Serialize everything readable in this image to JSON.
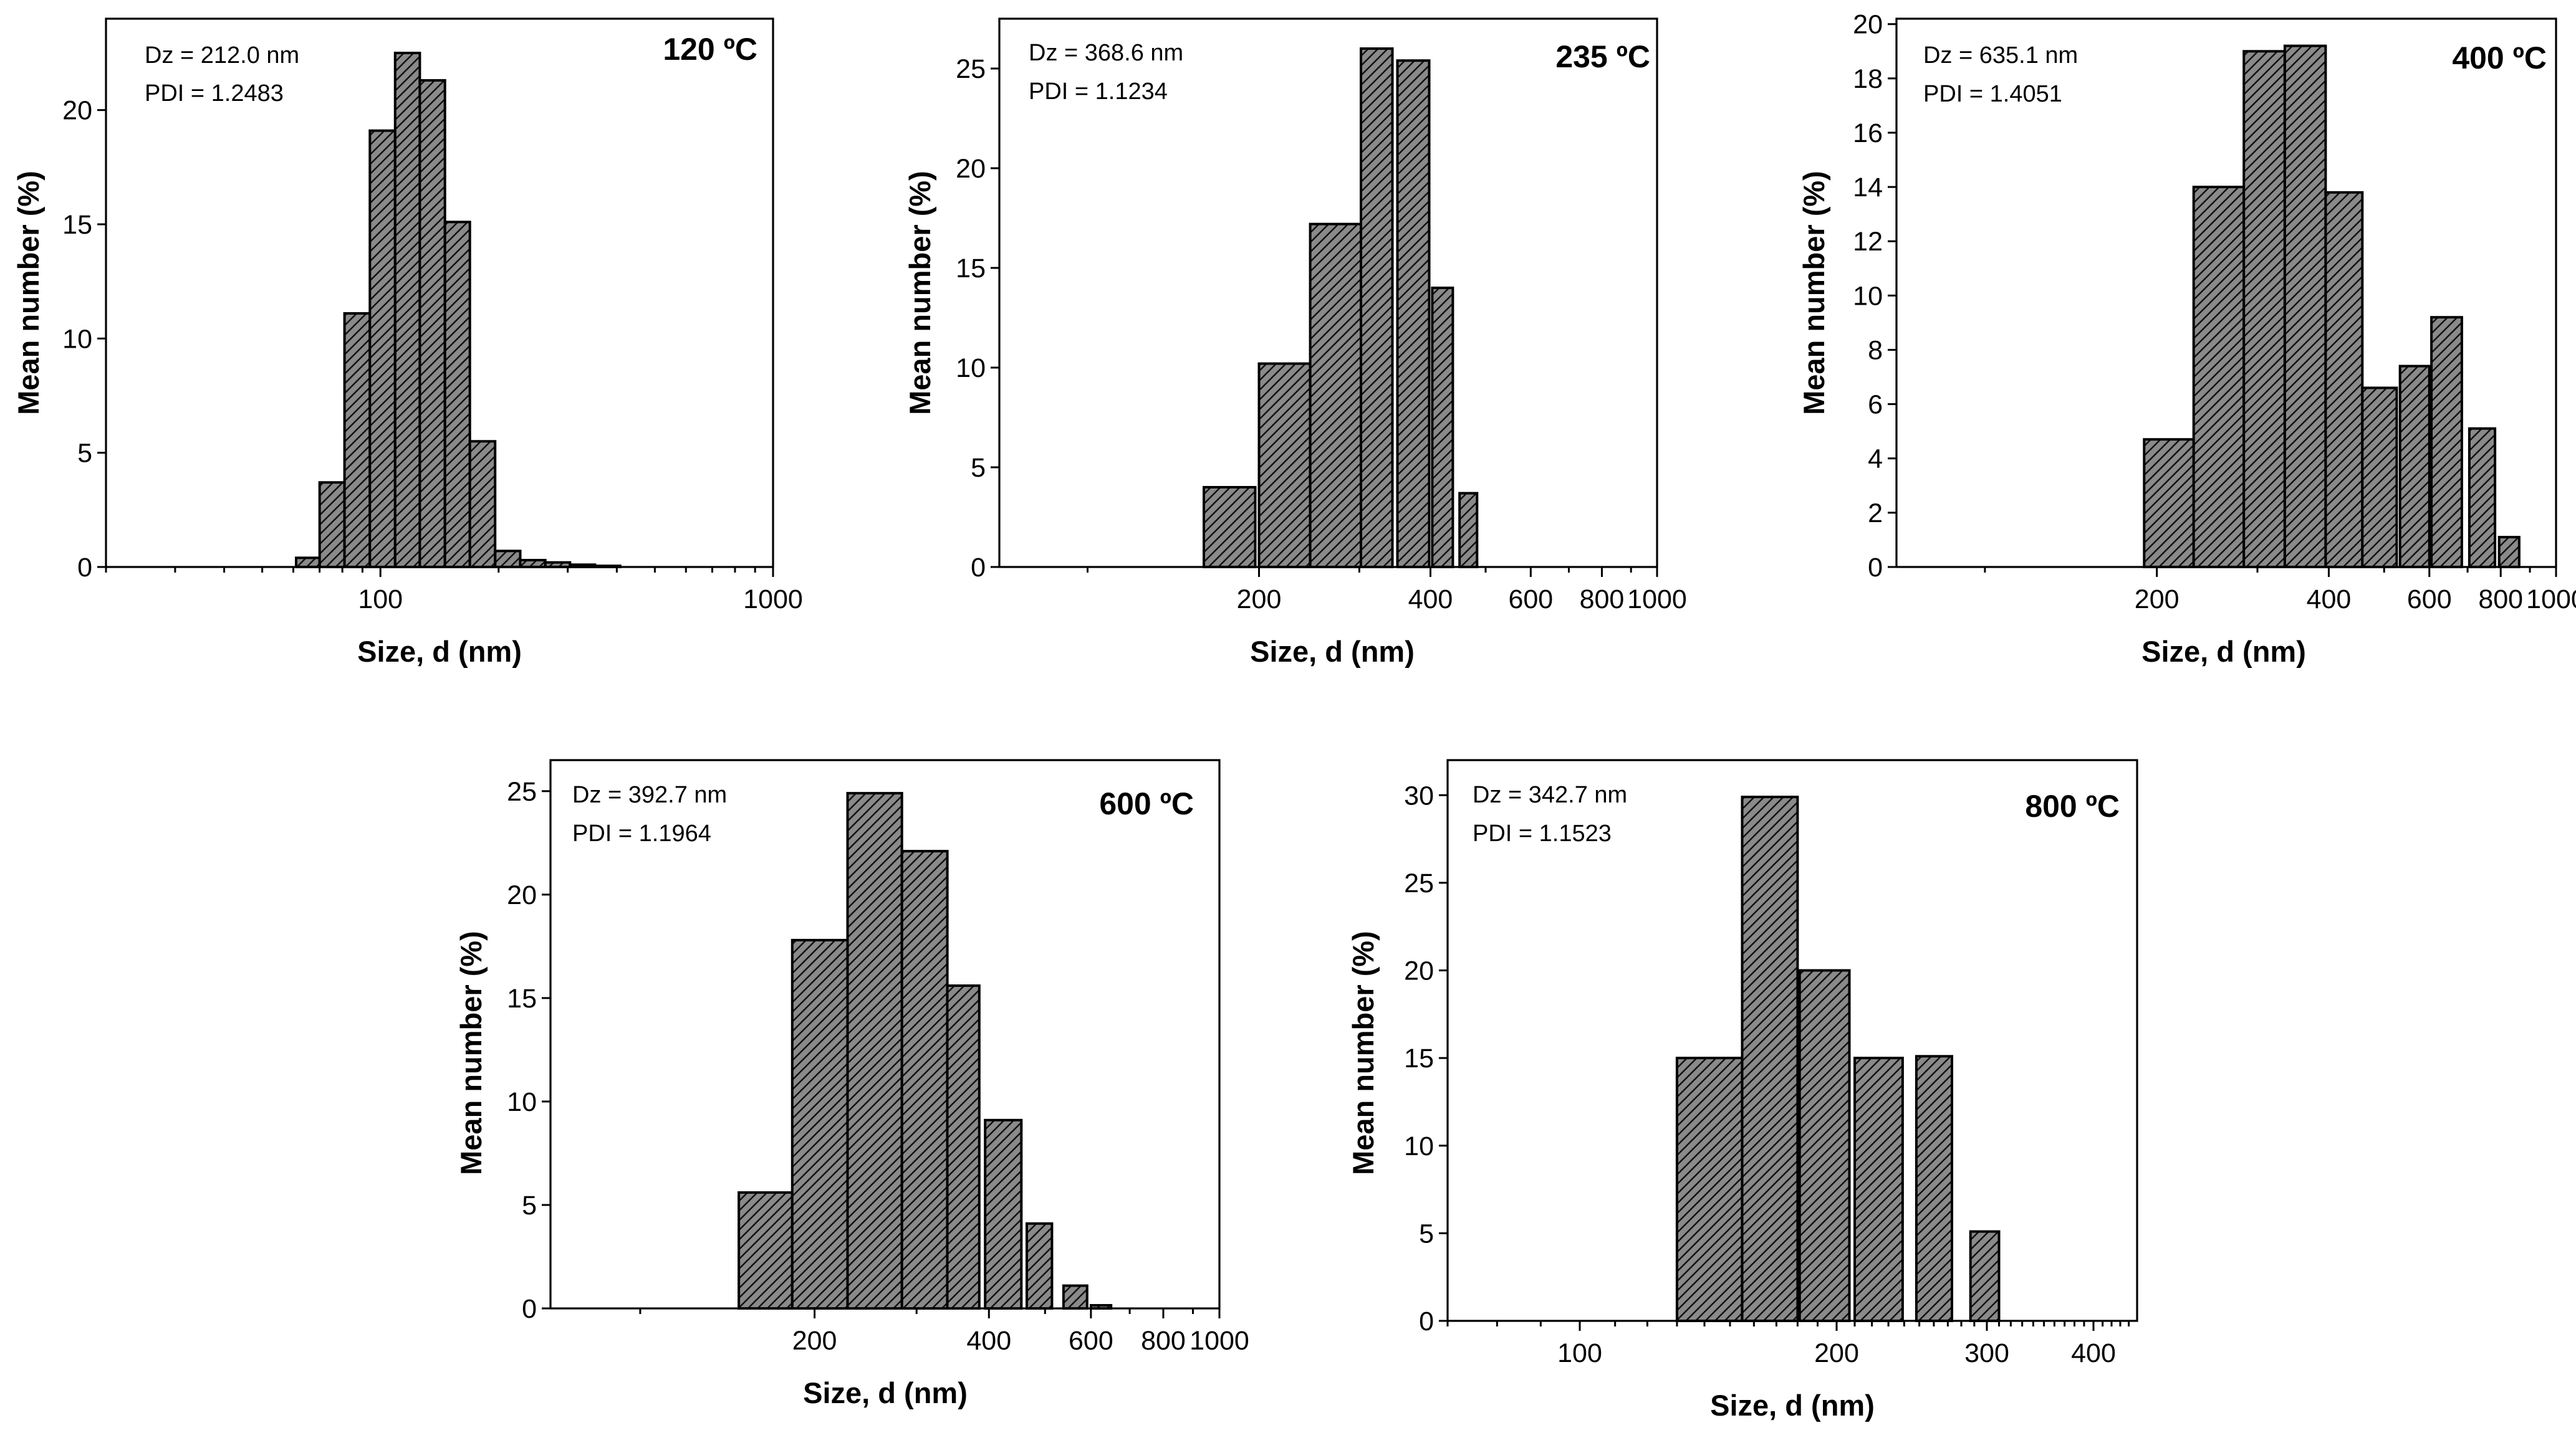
{
  "chart_data": [
    {
      "type": "bar",
      "title": "120 ºC",
      "annotation_dz": "Dz = 212.0 nm",
      "annotation_pdi": "PDI = 1.2483",
      "xlabel": "Size, d (nm)",
      "ylabel": "Mean number (%)",
      "x_scale": "log",
      "xlim": [
        20,
        1000
      ],
      "ylim": [
        0,
        24
      ],
      "x_major_ticks": [
        100,
        1000
      ],
      "x_tick_labels": [
        "100",
        "1000"
      ],
      "x_minor_ticks": [
        20,
        30,
        40,
        50,
        60,
        70,
        80,
        90,
        200,
        300,
        400,
        500,
        600,
        700,
        800,
        900
      ],
      "y_ticks": [
        0,
        5,
        10,
        15,
        20
      ],
      "y_tick_labels": [
        "0",
        "5",
        "10",
        "15",
        "20"
      ],
      "bars": [
        {
          "x0": 61,
          "x1": 70,
          "value": 0.4
        },
        {
          "x0": 70,
          "x1": 81,
          "value": 3.7
        },
        {
          "x0": 81,
          "x1": 94,
          "value": 11.1
        },
        {
          "x0": 94,
          "x1": 109,
          "value": 19.1
        },
        {
          "x0": 109,
          "x1": 126,
          "value": 22.5
        },
        {
          "x0": 126,
          "x1": 146,
          "value": 21.3
        },
        {
          "x0": 146,
          "x1": 169,
          "value": 15.1
        },
        {
          "x0": 169,
          "x1": 196,
          "value": 5.5
        },
        {
          "x0": 196,
          "x1": 227,
          "value": 0.7
        },
        {
          "x0": 227,
          "x1": 263,
          "value": 0.3
        },
        {
          "x0": 263,
          "x1": 304,
          "value": 0.2
        },
        {
          "x0": 304,
          "x1": 352,
          "value": 0.1
        },
        {
          "x0": 352,
          "x1": 408,
          "value": 0.05
        }
      ]
    },
    {
      "type": "bar",
      "title": "235 ºC",
      "annotation_dz": "Dz = 368.6 nm",
      "annotation_pdi": "PDI = 1.1234",
      "xlabel": "Size, d (nm)",
      "ylabel": "Mean number (%)",
      "x_scale": "log",
      "xlim": [
        70,
        1000
      ],
      "ylim": [
        0,
        27.5
      ],
      "x_major_ticks": [
        200,
        400,
        600,
        800,
        1000
      ],
      "x_tick_labels": [
        "200",
        "400",
        "600",
        "800",
        "1000"
      ],
      "x_minor_ticks": [
        100,
        300,
        500,
        700,
        900
      ],
      "y_ticks": [
        0,
        5,
        10,
        15,
        20,
        25
      ],
      "y_tick_labels": [
        "0",
        "5",
        "10",
        "15",
        "20",
        "25"
      ],
      "bars": [
        {
          "x0": 160,
          "x1": 197,
          "value": 4.0
        },
        {
          "x0": 200,
          "x1": 246,
          "value": 10.2
        },
        {
          "x0": 246,
          "x1": 302,
          "value": 17.2
        },
        {
          "x0": 302,
          "x1": 343,
          "value": 26.0
        },
        {
          "x0": 350,
          "x1": 398,
          "value": 25.4
        },
        {
          "x0": 403,
          "x1": 438,
          "value": 14.0
        },
        {
          "x0": 450,
          "x1": 483,
          "value": 3.7
        }
      ]
    },
    {
      "type": "bar",
      "title": "400 ºC",
      "annotation_dz": "Dz = 635.1 nm",
      "annotation_pdi": "PDI = 1.4051",
      "xlabel": "Size, d (nm)",
      "ylabel": "Mean number (%)",
      "x_scale": "log",
      "xlim": [
        70,
        1000
      ],
      "ylim": [
        0,
        20.2
      ],
      "x_major_ticks": [
        200,
        400,
        600,
        800,
        1000
      ],
      "x_tick_labels": [
        "200",
        "400",
        "600",
        "800",
        "1000"
      ],
      "x_minor_ticks": [
        100,
        300,
        500,
        700,
        900
      ],
      "y_ticks": [
        0,
        2,
        4,
        6,
        8,
        10,
        12,
        14,
        16,
        18,
        20
      ],
      "y_tick_labels": [
        "0",
        "2",
        "4",
        "6",
        "8",
        "10",
        "12",
        "14",
        "16",
        "18",
        "20"
      ],
      "bars": [
        {
          "x0": 190,
          "x1": 232,
          "value": 4.7
        },
        {
          "x0": 232,
          "x1": 284,
          "value": 14.0
        },
        {
          "x0": 284,
          "x1": 335,
          "value": 19.0
        },
        {
          "x0": 335,
          "x1": 395,
          "value": 19.2
        },
        {
          "x0": 395,
          "x1": 458,
          "value": 13.8
        },
        {
          "x0": 458,
          "x1": 526,
          "value": 6.6
        },
        {
          "x0": 533,
          "x1": 600,
          "value": 7.4
        },
        {
          "x0": 605,
          "x1": 684,
          "value": 9.2
        },
        {
          "x0": 705,
          "x1": 782,
          "value": 5.1
        },
        {
          "x0": 795,
          "x1": 862,
          "value": 1.1
        }
      ]
    },
    {
      "type": "bar",
      "title": "600 ºC",
      "annotation_dz": "Dz = 392.7 nm",
      "annotation_pdi": "PDI = 1.1964",
      "xlabel": "Size, d (nm)",
      "ylabel": "Mean number (%)",
      "x_scale": "log",
      "xlim": [
        70,
        1000
      ],
      "ylim": [
        0,
        26.5
      ],
      "x_major_ticks": [
        200,
        400,
        600,
        800,
        1000
      ],
      "x_tick_labels": [
        "200",
        "400",
        "600",
        "800",
        "1000"
      ],
      "x_minor_ticks": [
        100,
        300,
        500,
        700,
        900
      ],
      "y_ticks": [
        0,
        5,
        10,
        15,
        20,
        25
      ],
      "y_tick_labels": [
        "0",
        "5",
        "10",
        "15",
        "20",
        "25"
      ],
      "bars": [
        {
          "x0": 148,
          "x1": 183,
          "value": 5.6
        },
        {
          "x0": 183,
          "x1": 228,
          "value": 17.8
        },
        {
          "x0": 228,
          "x1": 283,
          "value": 24.9
        },
        {
          "x0": 283,
          "x1": 339,
          "value": 22.1
        },
        {
          "x0": 339,
          "x1": 385,
          "value": 15.6
        },
        {
          "x0": 394,
          "x1": 455,
          "value": 9.1
        },
        {
          "x0": 465,
          "x1": 514,
          "value": 4.1
        },
        {
          "x0": 538,
          "x1": 591,
          "value": 1.1
        },
        {
          "x0": 600,
          "x1": 650,
          "value": 0.15
        }
      ]
    },
    {
      "type": "bar",
      "title": "800 ºC",
      "annotation_dz": "Dz = 342.7 nm",
      "annotation_pdi": "PDI = 1.1523",
      "xlabel": "Size, d (nm)",
      "ylabel": "Mean number (%)",
      "x_scale": "log",
      "xlim": [
        70,
        450
      ],
      "ylim": [
        0,
        32
      ],
      "x_major_ticks": [
        100,
        200,
        300,
        400
      ],
      "x_tick_labels": [
        "100",
        "200",
        "300",
        "400"
      ],
      "x_minor_ticks": [
        70,
        80,
        90,
        110,
        120,
        130,
        140,
        150,
        160,
        170,
        180,
        190,
        210,
        220,
        230,
        240,
        250,
        260,
        270,
        280,
        290,
        310,
        320,
        330,
        340,
        350,
        360,
        370,
        380,
        390,
        410,
        420,
        430,
        440
      ],
      "y_ticks": [
        0,
        5,
        10,
        15,
        20,
        25,
        30
      ],
      "y_tick_labels": [
        "0",
        "5",
        "10",
        "15",
        "20",
        "25",
        "30"
      ],
      "bars": [
        {
          "x0": 130,
          "x1": 155,
          "value": 15.0
        },
        {
          "x0": 155,
          "x1": 180,
          "value": 29.9
        },
        {
          "x0": 181,
          "x1": 207,
          "value": 20.0
        },
        {
          "x0": 210,
          "x1": 239,
          "value": 15.0
        },
        {
          "x0": 248,
          "x1": 273,
          "value": 15.1
        },
        {
          "x0": 287,
          "x1": 310,
          "value": 5.1
        }
      ]
    }
  ]
}
